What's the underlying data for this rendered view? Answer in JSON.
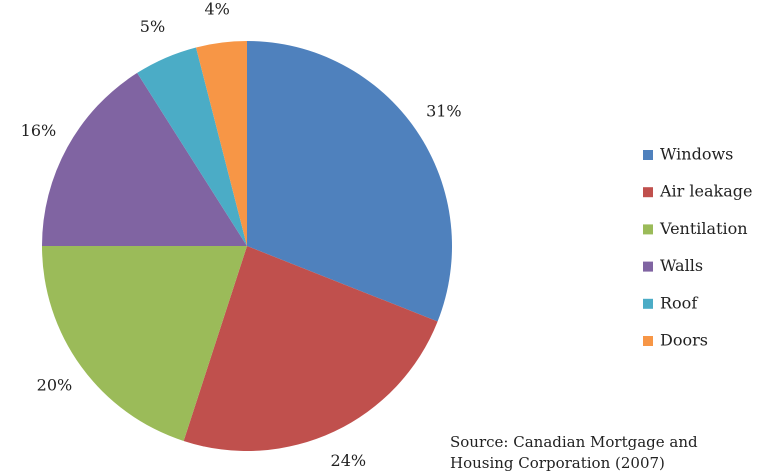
{
  "chart_data": {
    "type": "pie",
    "categories": [
      "Windows",
      "Air leakage",
      "Ventilation",
      "Walls",
      "Roof",
      "Doors"
    ],
    "values": [
      31,
      24,
      20,
      16,
      5,
      4
    ],
    "value_labels": [
      "31%",
      "24%",
      "20%",
      "16%",
      "5%",
      "4%"
    ],
    "colors": [
      "#4f81bd",
      "#c0504d",
      "#9bbb59",
      "#8064a2",
      "#4bacc6",
      "#f79646"
    ],
    "legend": "right",
    "annotations": [
      "Source: Canadian Mortgage and",
      "Housing Corporation (2007)"
    ]
  }
}
